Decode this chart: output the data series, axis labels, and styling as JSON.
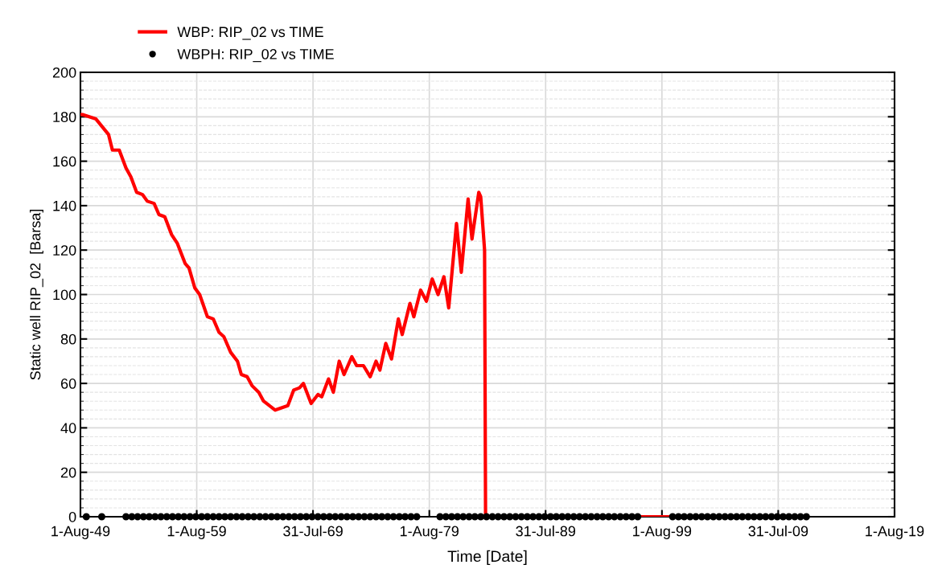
{
  "chart_data": {
    "type": "line",
    "xlabel": "Time [Date]",
    "ylabel": "Static well RIP_02  [Barsa]",
    "series": [
      {
        "name": "WBP: RIP_02 vs TIME",
        "color": "#ff0000",
        "marker": "none",
        "line_style": "solid",
        "x": [
          "1949-08",
          "1949-10",
          "1950-12",
          "1952-01",
          "1952-05",
          "1952-12",
          "1953-07",
          "1953-12",
          "1954-06",
          "1954-12",
          "1955-05",
          "1955-12",
          "1956-05",
          "1956-11",
          "1957-06",
          "1957-12",
          "1958-08",
          "1958-12",
          "1959-06",
          "1959-11",
          "1960-07",
          "1961-01",
          "1961-07",
          "1961-12",
          "1962-07",
          "1963-02",
          "1963-06",
          "1963-12",
          "1964-05",
          "1964-12",
          "1965-05",
          "1966-05",
          "1967-06",
          "1967-12",
          "1968-06",
          "1968-10",
          "1969-06",
          "1970-01",
          "1970-05",
          "1970-12",
          "1971-05",
          "1971-11",
          "1972-04",
          "1972-12",
          "1973-05",
          "1973-12",
          "1974-07",
          "1975-01",
          "1975-05",
          "1975-11",
          "1976-05",
          "1976-12",
          "1977-04",
          "1977-12",
          "1978-04",
          "1978-11",
          "1979-05",
          "1979-11",
          "1980-05",
          "1980-11",
          "1981-04",
          "1981-12",
          "1982-05",
          "1982-12",
          "1983-04",
          "1983-11",
          "1984-01",
          "1984-05",
          "1984-06",
          "2000-06"
        ],
        "values": [
          181,
          181,
          179,
          172,
          165,
          165,
          157,
          153,
          146,
          145,
          142,
          141,
          136,
          135,
          127,
          123,
          114,
          112,
          103,
          100,
          90,
          89,
          83,
          81,
          74,
          70,
          64,
          63,
          59,
          56,
          52,
          48,
          50,
          57,
          58,
          60,
          51,
          55,
          54,
          62,
          56,
          70,
          64,
          72,
          68,
          68,
          63,
          70,
          66,
          78,
          71,
          89,
          82,
          96,
          90,
          102,
          97,
          107,
          100,
          108,
          94,
          132,
          110,
          143,
          125,
          146,
          144,
          120,
          0,
          0
        ]
      },
      {
        "name": "WBPH: RIP_02 vs TIME",
        "type": "scatter",
        "color": "#000000",
        "marker": "circle",
        "x": [
          "1950-02",
          "1951-06",
          "1953-07",
          "1954-01",
          "1954-07",
          "1955-01",
          "1955-07",
          "1956-01",
          "1956-07",
          "1957-01",
          "1957-07",
          "1958-01",
          "1958-07",
          "1959-01",
          "1959-07",
          "1960-01",
          "1960-07",
          "1961-01",
          "1961-07",
          "1962-01",
          "1962-07",
          "1963-01",
          "1963-07",
          "1964-01",
          "1964-07",
          "1965-01",
          "1965-07",
          "1966-01",
          "1966-07",
          "1967-01",
          "1967-07",
          "1968-01",
          "1968-07",
          "1969-01",
          "1969-07",
          "1970-01",
          "1970-07",
          "1971-01",
          "1971-07",
          "1972-01",
          "1972-07",
          "1973-01",
          "1973-07",
          "1974-01",
          "1974-07",
          "1975-01",
          "1975-07",
          "1976-01",
          "1976-07",
          "1977-01",
          "1977-07",
          "1978-01",
          "1978-07",
          "1980-07",
          "1981-01",
          "1981-07",
          "1982-01",
          "1982-07",
          "1983-01",
          "1983-07",
          "1984-01",
          "1984-07",
          "1985-01",
          "1985-07",
          "1986-01",
          "1986-07",
          "1987-01",
          "1987-07",
          "1988-01",
          "1988-07",
          "1989-01",
          "1989-07",
          "1990-01",
          "1990-07",
          "1991-01",
          "1991-07",
          "1992-01",
          "1992-07",
          "1993-01",
          "1993-07",
          "1994-01",
          "1994-07",
          "1995-01",
          "1995-07",
          "1996-01",
          "1996-07",
          "1997-01",
          "1997-07",
          "2000-07",
          "2001-01",
          "2001-07",
          "2002-01",
          "2002-07",
          "2003-01",
          "2003-07",
          "2004-01",
          "2004-07",
          "2005-01",
          "2005-07",
          "2006-01",
          "2006-07",
          "2007-01",
          "2007-07",
          "2008-01",
          "2008-07",
          "2009-01",
          "2009-07",
          "2010-01",
          "2010-07",
          "2011-01",
          "2011-07",
          "2012-01"
        ],
        "values": [
          0,
          0,
          0,
          0,
          0,
          0,
          0,
          0,
          0,
          0,
          0,
          0,
          0,
          0,
          0,
          0,
          0,
          0,
          0,
          0,
          0,
          0,
          0,
          0,
          0,
          0,
          0,
          0,
          0,
          0,
          0,
          0,
          0,
          0,
          0,
          0,
          0,
          0,
          0,
          0,
          0,
          0,
          0,
          0,
          0,
          0,
          0,
          0,
          0,
          0,
          0,
          0,
          0,
          0,
          0,
          0,
          0,
          0,
          0,
          0,
          0,
          0,
          0,
          0,
          0,
          0,
          0,
          0,
          0,
          0,
          0,
          0,
          0,
          0,
          0,
          0,
          0,
          0,
          0,
          0,
          0,
          0,
          0,
          0,
          0,
          0,
          0,
          0,
          0,
          0,
          0,
          0,
          0,
          0,
          0,
          0,
          0,
          0,
          0,
          0,
          0,
          0,
          0,
          0,
          0,
          0,
          0,
          0,
          0,
          0,
          0,
          0
        ]
      }
    ],
    "xlim": [
      "1949-08-01",
      "2019-08-01"
    ],
    "xticks": [
      {
        "value": "1949-08-01",
        "label": "1-Aug-49"
      },
      {
        "value": "1959-08-01",
        "label": "1-Aug-59"
      },
      {
        "value": "1969-07-31",
        "label": "31-Jul-69"
      },
      {
        "value": "1979-08-01",
        "label": "1-Aug-79"
      },
      {
        "value": "1989-07-31",
        "label": "31-Jul-89"
      },
      {
        "value": "1999-08-01",
        "label": "1-Aug-99"
      },
      {
        "value": "2009-07-31",
        "label": "31-Jul-09"
      },
      {
        "value": "2019-08-01",
        "label": "1-Aug-19"
      }
    ],
    "ylim": [
      0,
      200
    ],
    "yticks": [
      0,
      20,
      40,
      60,
      80,
      100,
      120,
      140,
      160,
      180,
      200
    ],
    "grid": true,
    "legend": "top left"
  }
}
